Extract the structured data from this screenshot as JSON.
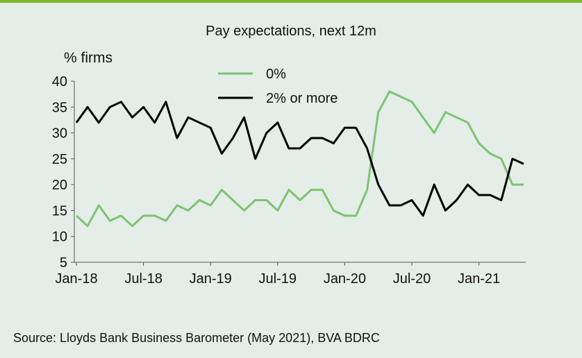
{
  "chart_data": {
    "type": "line",
    "title": "Pay expectations, next 12m",
    "ylabel": "% firms",
    "xlabel": "",
    "ylim": [
      5,
      40
    ],
    "yticks": [
      5,
      10,
      15,
      20,
      25,
      30,
      35,
      40
    ],
    "xtick_labels": [
      "Jan-18",
      "Jul-18",
      "Jan-19",
      "Jul-19",
      "Jan-20",
      "Jul-20",
      "Jan-21"
    ],
    "xtick_indices": [
      0,
      6,
      12,
      18,
      24,
      30,
      36
    ],
    "n_points": 41,
    "legend_position": "top-center",
    "series": [
      {
        "name": "0%",
        "color": "#7dc371",
        "values": [
          14,
          12,
          16,
          13,
          14,
          12,
          14,
          14,
          13,
          16,
          15,
          17,
          16,
          19,
          17,
          15,
          17,
          17,
          15,
          19,
          17,
          19,
          19,
          15,
          14,
          14,
          19,
          34,
          38,
          37,
          36,
          33,
          30,
          34,
          33,
          32,
          28,
          26,
          25,
          20,
          20
        ]
      },
      {
        "name": "2% or more",
        "color": "#000000",
        "values": [
          32,
          35,
          32,
          35,
          36,
          33,
          35,
          32,
          36,
          29,
          33,
          32,
          31,
          26,
          29,
          33,
          25,
          30,
          32,
          27,
          27,
          29,
          29,
          28,
          31,
          31,
          27,
          20,
          16,
          16,
          17,
          14,
          20,
          15,
          17,
          20,
          18,
          18,
          17,
          25,
          24
        ]
      }
    ]
  },
  "source": "Source: Lloyds Bank Business Barometer (May 2021), BVA BDRC",
  "colors": {
    "background": "#e4ede8",
    "accent_bar": "#7ab828"
  }
}
